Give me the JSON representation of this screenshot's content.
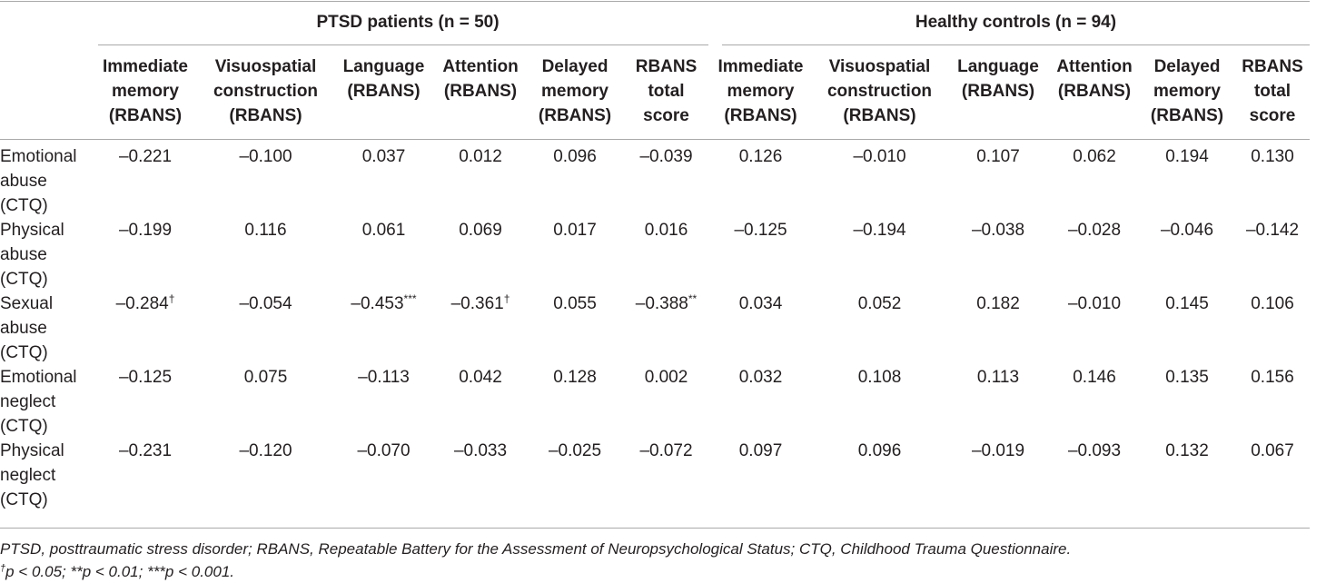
{
  "groups": {
    "ptsd": "PTSD patients (n = 50)",
    "controls": "Healthy controls (n = 94)"
  },
  "columns": [
    [
      "Immediate",
      "memory",
      "(RBANS)"
    ],
    [
      "Visuospatial",
      "construction",
      "(RBANS)"
    ],
    [
      "Language",
      "(RBANS)"
    ],
    [
      "Attention",
      "(RBANS)"
    ],
    [
      "Delayed",
      "memory",
      "(RBANS)"
    ],
    [
      "RBANS",
      "total",
      "score"
    ],
    [
      "Immediate",
      "memory",
      "(RBANS)"
    ],
    [
      "Visuospatial",
      "construction",
      "(RBANS)"
    ],
    [
      "Language",
      "(RBANS)"
    ],
    [
      "Attention",
      "(RBANS)"
    ],
    [
      "Delayed",
      "memory",
      "(RBANS)"
    ],
    [
      "RBANS",
      "total",
      "score"
    ]
  ],
  "rows": [
    {
      "label": [
        "Emotional",
        "abuse",
        "(CTQ)"
      ],
      "values": [
        "–0.221",
        "–0.100",
        "0.037",
        "0.012",
        "0.096",
        "–0.039",
        "0.126",
        "–0.010",
        "0.107",
        "0.062",
        "0.194",
        "0.130"
      ],
      "marks": [
        "",
        "",
        "",
        "",
        "",
        "",
        "",
        "",
        "",
        "",
        "",
        ""
      ]
    },
    {
      "label": [
        "Physical",
        "abuse",
        "(CTQ)"
      ],
      "values": [
        "–0.199",
        "0.116",
        "0.061",
        "0.069",
        "0.017",
        "0.016",
        "–0.125",
        "–0.194",
        "–0.038",
        "–0.028",
        "–0.046",
        "–0.142"
      ],
      "marks": [
        "",
        "",
        "",
        "",
        "",
        "",
        "",
        "",
        "",
        "",
        "",
        ""
      ]
    },
    {
      "label": [
        "Sexual",
        "abuse",
        "(CTQ)"
      ],
      "values": [
        "–0.284",
        "–0.054",
        "–0.453",
        "–0.361",
        "0.055",
        "–0.388",
        "0.034",
        "0.052",
        "0.182",
        "–0.010",
        "0.145",
        "0.106"
      ],
      "marks": [
        "†",
        "",
        "***",
        "†",
        "",
        "**",
        "",
        "",
        "",
        "",
        "",
        ""
      ]
    },
    {
      "label": [
        "Emotional",
        "neglect",
        "(CTQ)"
      ],
      "values": [
        "–0.125",
        "0.075",
        "–0.113",
        "0.042",
        "0.128",
        "0.002",
        "0.032",
        "0.108",
        "0.113",
        "0.146",
        "0.135",
        "0.156"
      ],
      "marks": [
        "",
        "",
        "",
        "",
        "",
        "",
        "",
        "",
        "",
        "",
        "",
        ""
      ]
    },
    {
      "label": [
        "Physical",
        "neglect",
        "(CTQ)"
      ],
      "values": [
        "–0.231",
        "–0.120",
        "–0.070",
        "–0.033",
        "–0.025",
        "–0.072",
        "0.097",
        "0.096",
        "–0.019",
        "–0.093",
        "0.132",
        "0.067"
      ],
      "marks": [
        "",
        "",
        "",
        "",
        "",
        "",
        "",
        "",
        "",
        "",
        "",
        ""
      ]
    }
  ],
  "footnotes": {
    "line1": "PTSD, posttraumatic stress disorder; RBANS, Repeatable Battery for the Assessment of Neuropsychological Status; CTQ, Childhood Trauma Questionnaire.",
    "line2_mark": "†",
    "line2_text": "p < 0.05; **p < 0.01; ***p < 0.001."
  }
}
